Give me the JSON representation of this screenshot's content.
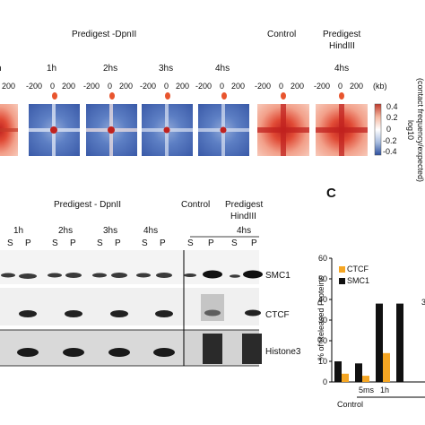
{
  "panelA": {
    "group_title": "Predigest -DpnII",
    "control_label": "Control",
    "hind_title_line1": "Predigest",
    "hind_title_line2": "HindIII",
    "time_labels": [
      "1h",
      "2hs",
      "3hs",
      "4hs",
      "4hs"
    ],
    "partial_left_time": "h",
    "axis_ticks": [
      "-200",
      "0",
      "200"
    ],
    "kb_label": "(kb)",
    "colorbar": {
      "title": "log10",
      "subtitle": "(contact frequency/expected)",
      "ticks": [
        "0.4",
        "0.2",
        "0",
        "-0.2",
        "-0.4"
      ],
      "colors": [
        "#c0392b",
        "#f5b7a0",
        "#ffffff",
        "#a8bde0",
        "#2c4f9e"
      ]
    }
  },
  "panelB": {
    "group_title": "Predigest - DpnII",
    "control_label": "Control",
    "hind_title_line1": "Predigest",
    "hind_title_line2": "HindIII",
    "time_labels": [
      "1h",
      "2hs",
      "3hs",
      "4hs",
      "4hs"
    ],
    "sp_labels": [
      "S",
      "P",
      "S",
      "P",
      "S",
      "P",
      "S",
      "P",
      "S",
      "P",
      "S",
      "P"
    ],
    "row_labels": [
      "SMC1",
      "CTCF",
      "Histone3"
    ]
  },
  "panelC": {
    "panel_letter": "C",
    "chart_data": {
      "type": "bar",
      "ylabel": "% of Released Proteins",
      "ylim": [
        0,
        60
      ],
      "yticks": [
        "0",
        "10",
        "20",
        "30",
        "40",
        "50",
        "60"
      ],
      "categories": [
        "Control",
        "5ms",
        "1h",
        ""
      ],
      "xlabels": [
        "5ms",
        "1h"
      ],
      "x_group_label": "Control",
      "partial_tick": "3",
      "series": [
        {
          "name": "CTCF",
          "color": "#f5a623",
          "values": [
            4,
            3,
            14,
            0
          ]
        },
        {
          "name": "SMC1",
          "color": "#111111",
          "values": [
            10,
            9,
            38,
            38
          ]
        }
      ],
      "legend_placement": "top-left"
    }
  }
}
